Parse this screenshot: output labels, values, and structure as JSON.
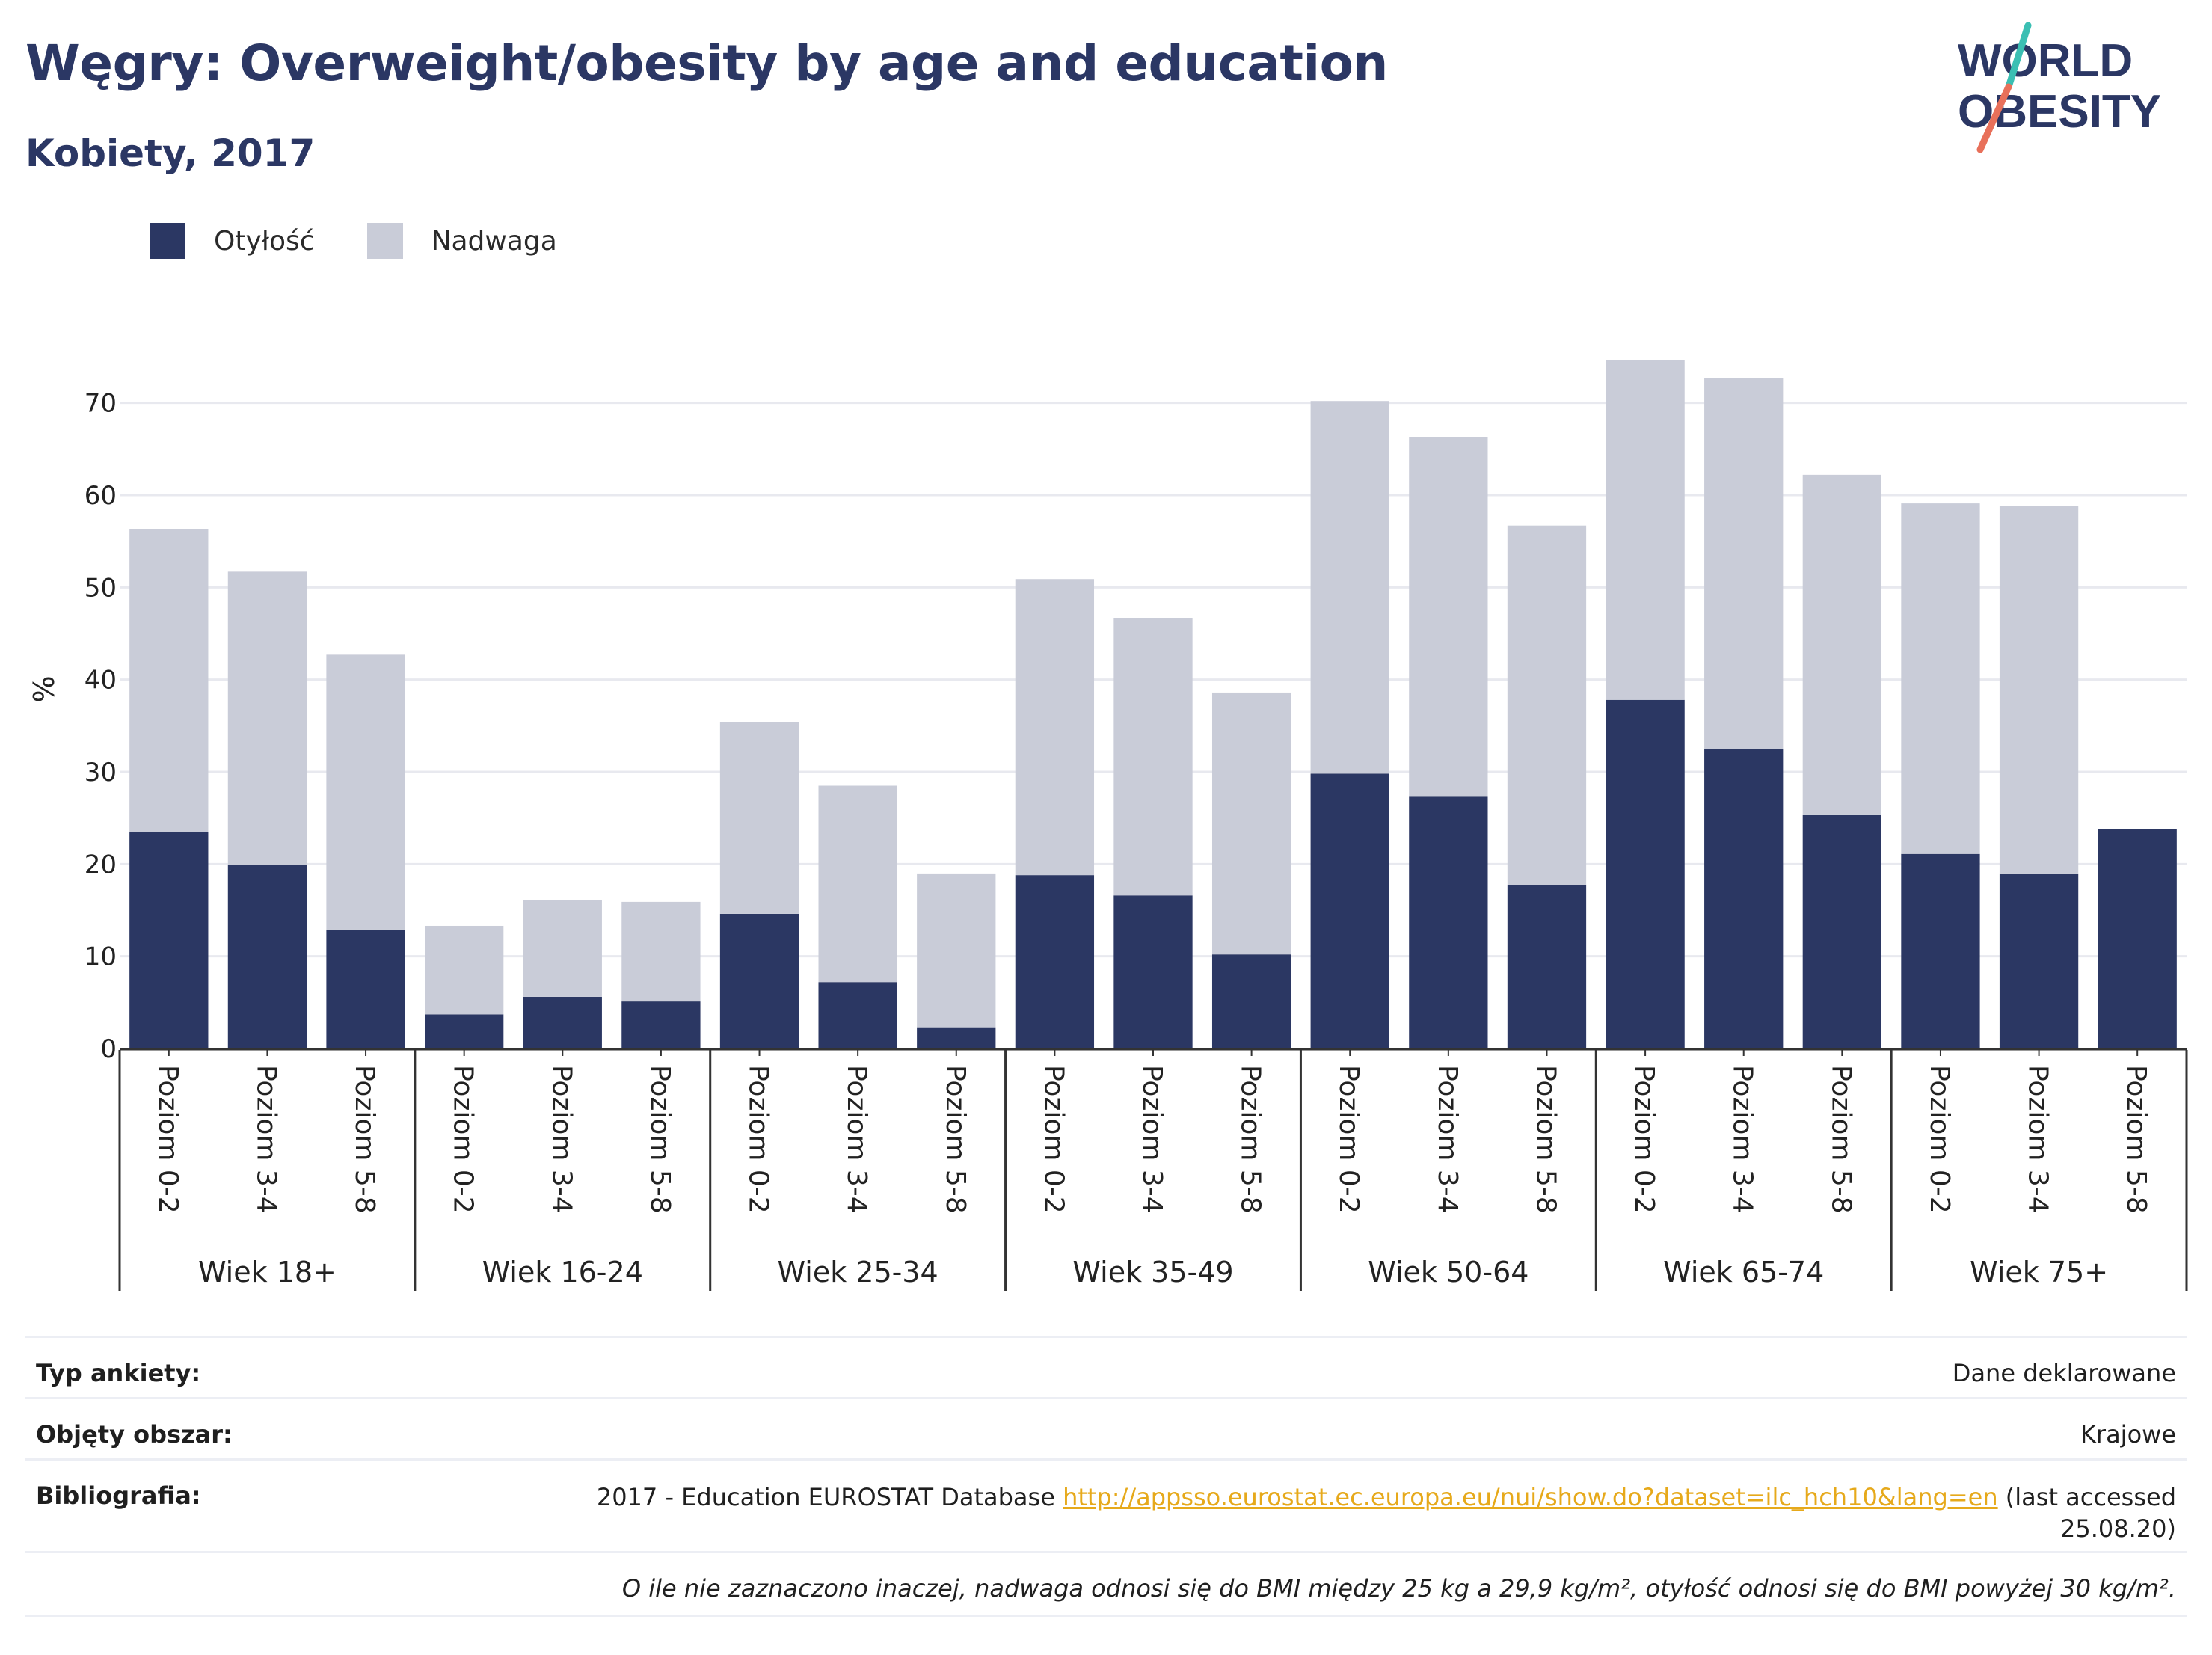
{
  "header": {
    "title": "Węgry: Overweight/obesity by age and education",
    "subtitle": "Kobiety, 2017",
    "logo_line1": "WORLD",
    "logo_line2": "OBESITY"
  },
  "colors": {
    "obesity": "#2b3763",
    "overweight": "#c9ccd8",
    "title": "#2b3764",
    "link": "#e6a91b",
    "logo_teal": "#3bbfb3",
    "logo_coral": "#e8705a"
  },
  "chart_data": {
    "type": "bar",
    "stacked": true,
    "ylabel": "%",
    "ylim": [
      0,
      75
    ],
    "yticks": [
      0,
      10,
      20,
      30,
      40,
      50,
      60,
      70
    ],
    "grid": true,
    "legend_position": "top-left",
    "groups": [
      "Wiek 18+",
      "Wiek 16-24",
      "Wiek 25-34",
      "Wiek 35-49",
      "Wiek 50-64",
      "Wiek 65-74",
      "Wiek 75+"
    ],
    "subcategories": [
      "Poziom 0-2",
      "Poziom 3-4",
      "Poziom 5-8"
    ],
    "series": [
      {
        "name": "Otyłość",
        "values": [
          23.5,
          19.9,
          12.9,
          3.7,
          5.6,
          5.1,
          14.6,
          7.2,
          2.3,
          18.8,
          16.6,
          10.2,
          29.8,
          27.3,
          17.7,
          37.8,
          32.5,
          25.3,
          21.1,
          18.9,
          23.8
        ]
      },
      {
        "name": "Nadwaga",
        "values": [
          32.8,
          31.8,
          29.8,
          9.6,
          10.5,
          10.8,
          20.8,
          21.3,
          16.6,
          32.1,
          30.1,
          28.4,
          40.4,
          39.0,
          39.0,
          36.8,
          40.2,
          36.9,
          38.0,
          39.9,
          0
        ]
      }
    ]
  },
  "info": {
    "survey_label": "Typ ankiety:",
    "survey_value": "Dane deklarowane",
    "area_label": "Objęty obszar:",
    "area_value": "Krajowe",
    "biblio_label": "Bibliografia:",
    "biblio_prefix": "2017 - Education EUROSTAT Database",
    "biblio_link": "http://appsso.eurostat.ec.europa.eu/nui/show.do?dataset=ilc_hch10&lang=en",
    "biblio_suffix_1": "(last accessed",
    "biblio_suffix_2": "25.08.20)",
    "note": "O ile nie zaznaczono inaczej, nadwaga odnosi się do BMI między 25 kg a 29,9 kg/m², otyłość odnosi się do BMI powyżej 30 kg/m²."
  }
}
